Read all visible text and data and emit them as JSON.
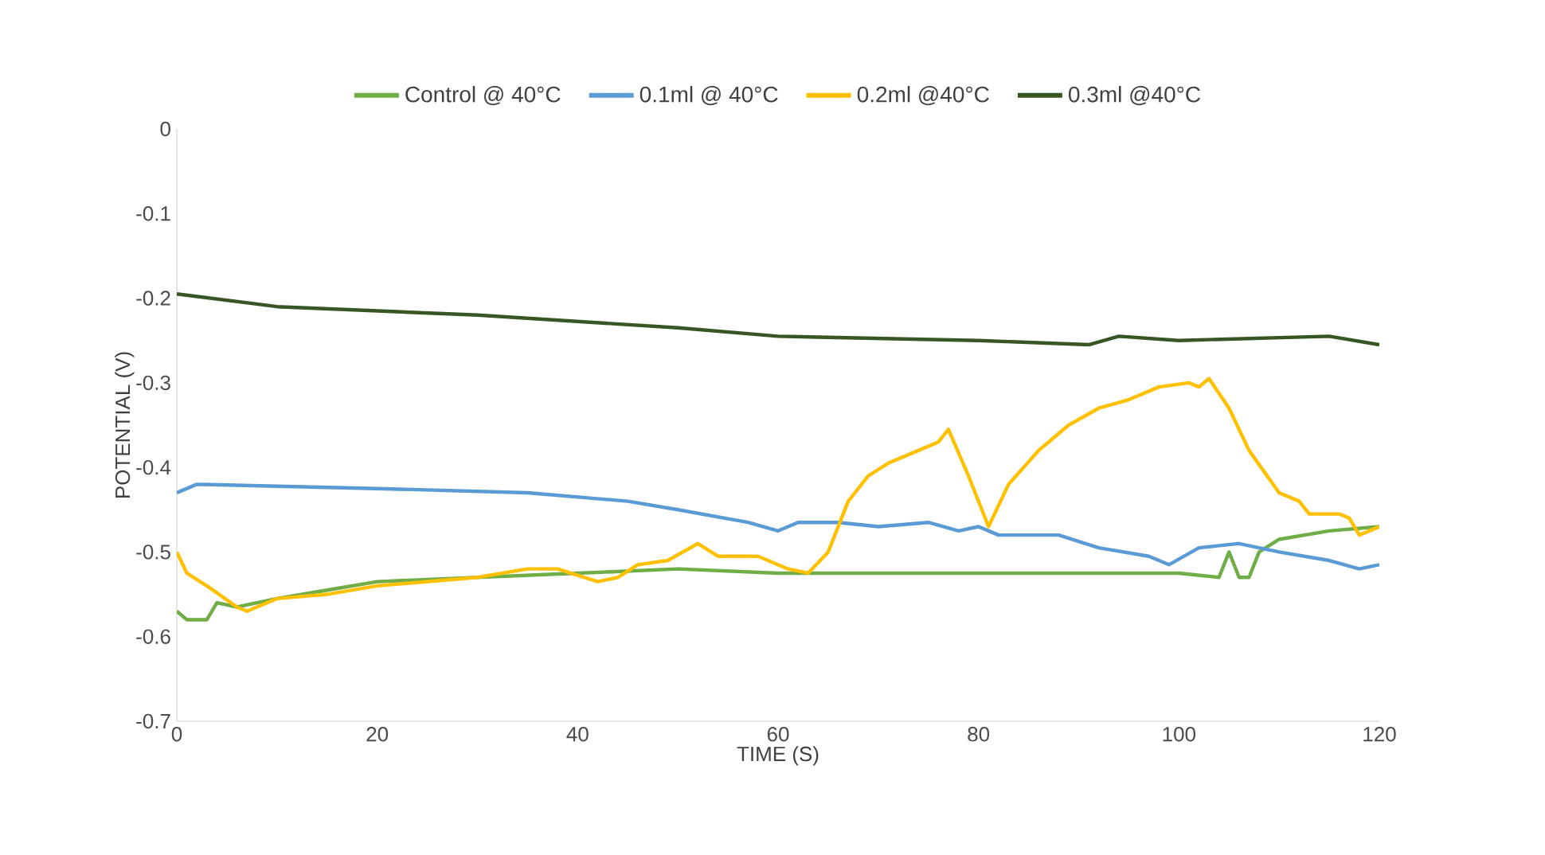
{
  "chart_data": {
    "type": "line",
    "xlabel": "TIME (S)",
    "ylabel": "POTENTIAL (V)",
    "xlim": [
      0,
      120
    ],
    "xticks": [
      0,
      20,
      40,
      60,
      80,
      100,
      120
    ],
    "ylim": [
      -0.7,
      0
    ],
    "yticks": [
      -0.7,
      -0.6,
      -0.5,
      -0.4,
      -0.3,
      -0.2,
      -0.1,
      0
    ],
    "grid": false,
    "legend": "top",
    "marker": "none",
    "line_style": "solid",
    "series": [
      {
        "name": "Control @ 40°C",
        "color": "#70ad47",
        "x": [
          0,
          1,
          3,
          4,
          6,
          10,
          15,
          20,
          30,
          40,
          50,
          60,
          80,
          100,
          104,
          105,
          106,
          107,
          108,
          110,
          115,
          120
        ],
        "values": [
          -0.57,
          -0.58,
          -0.58,
          -0.56,
          -0.565,
          -0.555,
          -0.545,
          -0.535,
          -0.53,
          -0.525,
          -0.52,
          -0.525,
          -0.525,
          -0.525,
          -0.53,
          -0.5,
          -0.53,
          -0.53,
          -0.5,
          -0.485,
          -0.475,
          -0.47
        ]
      },
      {
        "name": "0.1ml @ 40°C",
        "color": "#5b9bd5",
        "x": [
          0,
          2,
          20,
          35,
          45,
          50,
          57,
          60,
          62,
          66,
          70,
          75,
          78,
          80,
          82,
          88,
          92,
          97,
          99,
          102,
          106,
          110,
          115,
          118,
          120
        ],
        "values": [
          -0.43,
          -0.42,
          -0.425,
          -0.43,
          -0.44,
          -0.45,
          -0.465,
          -0.475,
          -0.465,
          -0.465,
          -0.47,
          -0.465,
          -0.475,
          -0.47,
          -0.48,
          -0.48,
          -0.495,
          -0.505,
          -0.515,
          -0.495,
          -0.49,
          -0.5,
          -0.51,
          -0.52,
          -0.515
        ]
      },
      {
        "name": "0.2ml @40°C",
        "color": "#ffc000",
        "x": [
          0,
          1,
          3,
          6,
          7,
          10,
          15,
          20,
          30,
          35,
          38,
          42,
          44,
          46,
          49,
          52,
          54,
          58,
          61,
          63,
          65,
          67,
          69,
          71,
          74,
          76,
          77,
          79,
          81,
          83,
          86,
          89,
          92,
          95,
          98,
          101,
          102,
          103,
          105,
          107,
          110,
          112,
          113,
          116,
          117,
          118,
          120
        ],
        "values": [
          -0.5,
          -0.525,
          -0.54,
          -0.565,
          -0.57,
          -0.555,
          -0.55,
          -0.54,
          -0.53,
          -0.52,
          -0.52,
          -0.535,
          -0.53,
          -0.515,
          -0.51,
          -0.49,
          -0.505,
          -0.505,
          -0.52,
          -0.525,
          -0.5,
          -0.44,
          -0.41,
          -0.395,
          -0.38,
          -0.37,
          -0.355,
          -0.41,
          -0.47,
          -0.42,
          -0.38,
          -0.35,
          -0.33,
          -0.32,
          -0.305,
          -0.3,
          -0.305,
          -0.295,
          -0.33,
          -0.38,
          -0.43,
          -0.44,
          -0.455,
          -0.455,
          -0.46,
          -0.48,
          -0.47
        ]
      },
      {
        "name": "0.3ml @40°C",
        "color": "#375623",
        "x": [
          0,
          10,
          30,
          50,
          60,
          80,
          91,
          94,
          100,
          115,
          120
        ],
        "values": [
          -0.195,
          -0.21,
          -0.22,
          -0.235,
          -0.245,
          -0.25,
          -0.255,
          -0.245,
          -0.25,
          -0.245,
          -0.255
        ]
      }
    ]
  }
}
